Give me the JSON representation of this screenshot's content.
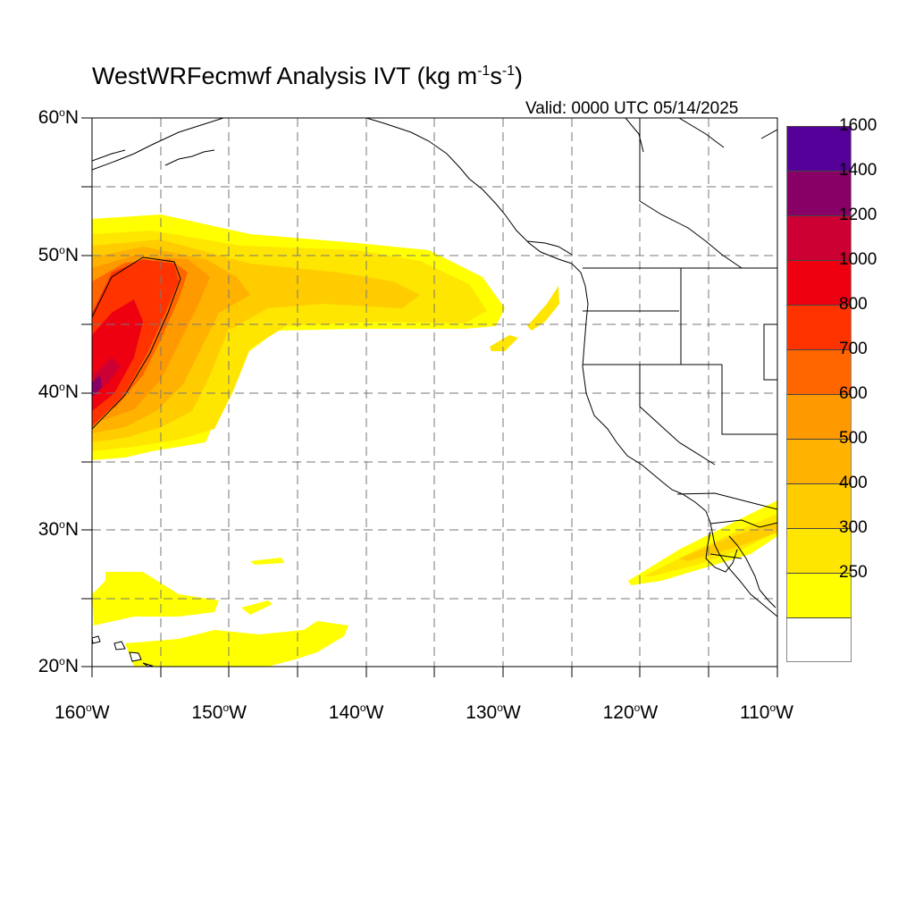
{
  "title": {
    "model": "WestWRFecmwf Analysis IVT",
    "units_open": "(kg m",
    "exp1": "-1",
    "units_mid": "s",
    "exp2": "-1",
    "units_close": ")"
  },
  "valid_time": "Valid: 0000 UTC 05/14/2025",
  "map": {
    "projection": "cylindrical equidistant",
    "lon_range": [
      -160,
      -110
    ],
    "lat_range": [
      20,
      60
    ],
    "grid": "dashed every 5 degrees",
    "lat_labels": [
      {
        "deg": "60",
        "sup": "o",
        "hem": "N",
        "value": 60
      },
      {
        "deg": "50",
        "sup": "o",
        "hem": "N",
        "value": 50
      },
      {
        "deg": "40",
        "sup": "o",
        "hem": "N",
        "value": 40
      },
      {
        "deg": "30",
        "sup": "o",
        "hem": "N",
        "value": 30
      },
      {
        "deg": "20",
        "sup": "o",
        "hem": "N",
        "value": 20
      }
    ],
    "lon_labels": [
      {
        "deg": "160",
        "sup": "o",
        "hem": "W",
        "value": -160
      },
      {
        "deg": "150",
        "sup": "o",
        "hem": "W",
        "value": -150
      },
      {
        "deg": "140",
        "sup": "o",
        "hem": "W",
        "value": -140
      },
      {
        "deg": "130",
        "sup": "o",
        "hem": "W",
        "value": -130
      },
      {
        "deg": "120",
        "sup": "o",
        "hem": "W",
        "value": -120
      },
      {
        "deg": "110",
        "sup": "o",
        "hem": "W",
        "value": -110
      }
    ]
  },
  "colorbar": {
    "levels": [
      {
        "label": "",
        "color": "#ffffff"
      },
      {
        "label": "250",
        "color": "#ffff00"
      },
      {
        "label": "300",
        "color": "#ffe600"
      },
      {
        "label": "400",
        "color": "#ffcc00"
      },
      {
        "label": "500",
        "color": "#ffb200"
      },
      {
        "label": "600",
        "color": "#ff9900"
      },
      {
        "label": "700",
        "color": "#ff6600"
      },
      {
        "label": "800",
        "color": "#ff3300"
      },
      {
        "label": "1000",
        "color": "#ee0011"
      },
      {
        "label": "1200",
        "color": "#cc0033"
      },
      {
        "label": "1400",
        "color": "#880066"
      },
      {
        "label": "1600",
        "color": "#550099"
      }
    ]
  },
  "features": {
    "atmospheric_river": "IVT plume from about 160W 37-50N extending east to 128W 45-50N, core above 800 kg m-1 s-1 near 157-160W 40-48N",
    "secondary_plume": "250-500 kg m-1 s-1 band from 121W 26N to 110W 32N",
    "tropical_moisture": "250-300 kg m-1 s-1 patches near Hawaii 20-27N 142-160W"
  }
}
